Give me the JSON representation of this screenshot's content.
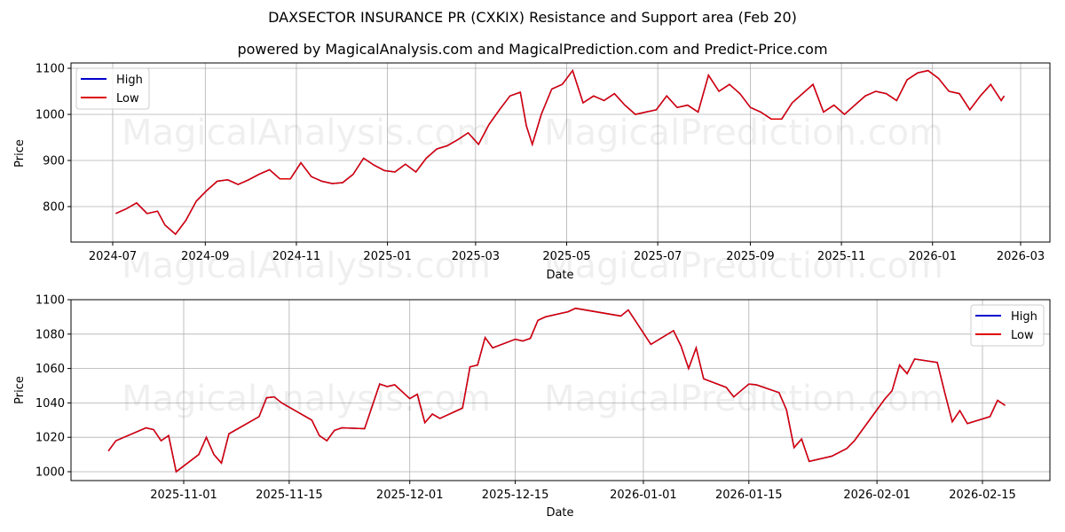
{
  "header": {
    "title": "DAXSECTOR INSURANCE PR (CXKIX) Resistance and Support area (Feb 20)",
    "subtitle": "powered by MagicalAnalysis.com and MagicalPrediction.com and Predict-Price.com"
  },
  "watermarks": [
    "MagicalAnalysis.com",
    "MagicalPrediction.com"
  ],
  "colors": {
    "high": "#0000cc",
    "low": "#dd0000",
    "grid": "#b0b0b0"
  },
  "chart_data": [
    {
      "type": "line",
      "title": "DAXSECTOR INSURANCE PR (CXKIX) Resistance and Support area (Feb 20)",
      "subtitle": "powered by MagicalAnalysis.com and MagicalPrediction.com and Predict-Price.com",
      "xlabel": "Date",
      "ylabel": "Price",
      "ylim": [
        720,
        1110
      ],
      "yticks": [
        800,
        900,
        1000,
        1100
      ],
      "xticks": [
        "2024-07",
        "2024-09",
        "2024-11",
        "2025-01",
        "2025-03",
        "2025-05",
        "2025-07",
        "2025-09",
        "2025-11",
        "2026-01",
        "2026-03"
      ],
      "grid": true,
      "legend": {
        "position": "upper left",
        "entries": [
          "High",
          "Low"
        ]
      },
      "x": [
        "2024-07-03",
        "2024-07-10",
        "2024-07-17",
        "2024-07-24",
        "2024-07-31",
        "2024-08-05",
        "2024-08-12",
        "2024-08-19",
        "2024-08-26",
        "2024-09-02",
        "2024-09-09",
        "2024-09-16",
        "2024-09-23",
        "2024-09-30",
        "2024-10-07",
        "2024-10-14",
        "2024-10-21",
        "2024-10-28",
        "2024-11-04",
        "2024-11-11",
        "2024-11-18",
        "2024-11-25",
        "2024-12-02",
        "2024-12-09",
        "2024-12-16",
        "2024-12-23",
        "2024-12-30",
        "2025-01-06",
        "2025-01-13",
        "2025-01-20",
        "2025-01-27",
        "2025-02-03",
        "2025-02-10",
        "2025-02-17",
        "2025-02-24",
        "2025-03-03",
        "2025-03-10",
        "2025-03-17",
        "2025-03-24",
        "2025-03-31",
        "2025-04-04",
        "2025-04-08",
        "2025-04-14",
        "2025-04-21",
        "2025-04-28",
        "2025-05-05",
        "2025-05-12",
        "2025-05-19",
        "2025-05-26",
        "2025-06-02",
        "2025-06-09",
        "2025-06-16",
        "2025-06-23",
        "2025-06-30",
        "2025-07-07",
        "2025-07-14",
        "2025-07-21",
        "2025-07-28",
        "2025-08-04",
        "2025-08-11",
        "2025-08-18",
        "2025-08-25",
        "2025-09-01",
        "2025-09-08",
        "2025-09-15",
        "2025-09-22",
        "2025-09-29",
        "2025-10-06",
        "2025-10-13",
        "2025-10-20",
        "2025-10-27",
        "2025-11-03",
        "2025-11-10",
        "2025-11-17",
        "2025-11-24",
        "2025-12-01",
        "2025-12-08",
        "2025-12-15",
        "2025-12-22",
        "2025-12-29",
        "2026-01-05",
        "2026-01-12",
        "2026-01-19",
        "2026-01-26",
        "2026-02-02",
        "2026-02-09",
        "2026-02-16",
        "2026-02-18"
      ],
      "series": [
        {
          "name": "High",
          "color": "#0000cc",
          "values": [
            785,
            795,
            808,
            785,
            790,
            760,
            740,
            770,
            812,
            835,
            855,
            858,
            848,
            858,
            870,
            880,
            860,
            860,
            895,
            865,
            855,
            850,
            852,
            870,
            905,
            890,
            878,
            875,
            892,
            875,
            905,
            925,
            932,
            945,
            960,
            935,
            978,
            1010,
            1040,
            1048,
            975,
            935,
            1000,
            1055,
            1065,
            1095,
            1025,
            1040,
            1030,
            1045,
            1020,
            1000,
            1005,
            1010,
            1040,
            1015,
            1020,
            1005,
            1085,
            1050,
            1065,
            1045,
            1015,
            1005,
            990,
            990,
            1025,
            1045,
            1065,
            1005,
            1020,
            1000,
            1020,
            1040,
            1050,
            1045,
            1030,
            1075,
            1090,
            1095,
            1078,
            1050,
            1045,
            1010,
            1040,
            1065,
            1030,
            1040
          ]
        },
        {
          "name": "Low",
          "color": "#dd0000",
          "values": [
            785,
            795,
            808,
            785,
            790,
            760,
            740,
            770,
            812,
            835,
            855,
            858,
            848,
            858,
            870,
            880,
            860,
            860,
            895,
            865,
            855,
            850,
            852,
            870,
            905,
            890,
            878,
            875,
            892,
            875,
            905,
            925,
            932,
            945,
            960,
            935,
            978,
            1010,
            1040,
            1048,
            975,
            935,
            1000,
            1055,
            1065,
            1095,
            1025,
            1040,
            1030,
            1045,
            1020,
            1000,
            1005,
            1010,
            1040,
            1015,
            1020,
            1005,
            1085,
            1050,
            1065,
            1045,
            1015,
            1005,
            990,
            990,
            1025,
            1045,
            1065,
            1005,
            1020,
            1000,
            1020,
            1040,
            1050,
            1045,
            1030,
            1075,
            1090,
            1095,
            1078,
            1050,
            1045,
            1010,
            1040,
            1065,
            1030,
            1040
          ]
        }
      ]
    },
    {
      "type": "line",
      "xlabel": "Date",
      "ylabel": "Price",
      "ylim": [
        995,
        1100
      ],
      "yticks": [
        1000,
        1020,
        1040,
        1060,
        1080,
        1100
      ],
      "xticks": [
        "2025-11-01",
        "2025-11-15",
        "2025-12-01",
        "2025-12-15",
        "2026-01-01",
        "2026-01-15",
        "2026-02-01",
        "2026-02-15"
      ],
      "grid": true,
      "legend": {
        "position": "upper right",
        "entries": [
          "High",
          "Low"
        ]
      },
      "x": [
        "2025-10-22",
        "2025-10-23",
        "2025-10-27",
        "2025-10-28",
        "2025-10-29",
        "2025-10-30",
        "2025-10-31",
        "2025-11-03",
        "2025-11-04",
        "2025-11-05",
        "2025-11-06",
        "2025-11-07",
        "2025-11-11",
        "2025-11-12",
        "2025-11-13",
        "2025-11-14",
        "2025-11-18",
        "2025-11-19",
        "2025-11-20",
        "2025-11-21",
        "2025-11-22",
        "2025-11-25",
        "2025-11-27",
        "2025-11-28",
        "2025-11-29",
        "2025-12-01",
        "2025-12-02",
        "2025-12-03",
        "2025-12-04",
        "2025-12-05",
        "2025-12-08",
        "2025-12-09",
        "2025-12-10",
        "2025-12-11",
        "2025-12-12",
        "2025-12-15",
        "2025-12-16",
        "2025-12-17",
        "2025-12-18",
        "2025-12-19",
        "2025-12-22",
        "2025-12-23",
        "2025-12-29",
        "2025-12-30",
        "2026-01-02",
        "2026-01-05",
        "2026-01-06",
        "2026-01-07",
        "2026-01-08",
        "2026-01-09",
        "2026-01-12",
        "2026-01-13",
        "2026-01-15",
        "2026-01-16",
        "2026-01-19",
        "2026-01-20",
        "2026-01-21",
        "2026-01-22",
        "2026-01-23",
        "2026-01-26",
        "2026-01-28",
        "2026-01-29",
        "2026-02-02",
        "2026-02-03",
        "2026-02-04",
        "2026-02-05",
        "2026-02-06",
        "2026-02-09",
        "2026-02-10",
        "2026-02-11",
        "2026-02-12",
        "2026-02-13",
        "2026-02-16",
        "2026-02-17",
        "2026-02-18"
      ],
      "series": [
        {
          "name": "High",
          "color": "#0000cc",
          "values": [
            1012,
            1018,
            1025.5,
            1024.5,
            1018,
            1021,
            1000,
            1010,
            1020,
            1010,
            1005,
            1022,
            1032,
            1043,
            1043.5,
            1040,
            1030,
            1021,
            1018,
            1024,
            1025.5,
            1025,
            1051,
            1049.5,
            1050.5,
            1042.5,
            1045,
            1028.5,
            1033.5,
            1031,
            1037,
            1061,
            1062,
            1078,
            1072,
            1077,
            1076,
            1077.5,
            1088,
            1090,
            1093,
            1095,
            1090.5,
            1094,
            1074,
            1082,
            1073,
            1060,
            1072,
            1054,
            1049,
            1043.5,
            1051,
            1050.5,
            1046,
            1036,
            1014,
            1019,
            1006,
            1009,
            1013.5,
            1018,
            1042,
            1047,
            1062,
            1057,
            1065.5,
            1063.5,
            1046,
            1029,
            1035.5,
            1028,
            1032,
            1041.5,
            1038.5
          ]
        },
        {
          "name": "Low",
          "color": "#dd0000",
          "values": [
            1012,
            1018,
            1025.5,
            1024.5,
            1018,
            1021,
            1000,
            1010,
            1020,
            1010,
            1005,
            1022,
            1032,
            1043,
            1043.5,
            1040,
            1030,
            1021,
            1018,
            1024,
            1025.5,
            1025,
            1051,
            1049.5,
            1050.5,
            1042.5,
            1045,
            1028.5,
            1033.5,
            1031,
            1037,
            1061,
            1062,
            1078,
            1072,
            1077,
            1076,
            1077.5,
            1088,
            1090,
            1093,
            1095,
            1090.5,
            1094,
            1074,
            1082,
            1073,
            1060,
            1072,
            1054,
            1049,
            1043.5,
            1051,
            1050.5,
            1046,
            1036,
            1014,
            1019,
            1006,
            1009,
            1013.5,
            1018,
            1042,
            1047,
            1062,
            1057,
            1065.5,
            1063.5,
            1046,
            1029,
            1035.5,
            1028,
            1032,
            1041.5,
            1038.5
          ]
        }
      ]
    }
  ]
}
